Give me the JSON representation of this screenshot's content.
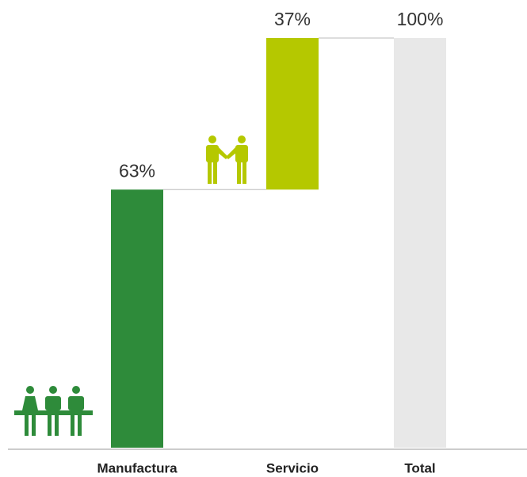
{
  "chart_data": {
    "type": "waterfall",
    "categories": [
      "Manufactura",
      "Servicio",
      "Total"
    ],
    "values": [
      63,
      37,
      100
    ],
    "value_labels": [
      "63%",
      "37%",
      "100%"
    ],
    "is_total": [
      false,
      false,
      true
    ],
    "colors": [
      "#2e8b3a",
      "#b5c800",
      "#e8e8e8"
    ],
    "ylim": [
      0,
      100
    ]
  }
}
